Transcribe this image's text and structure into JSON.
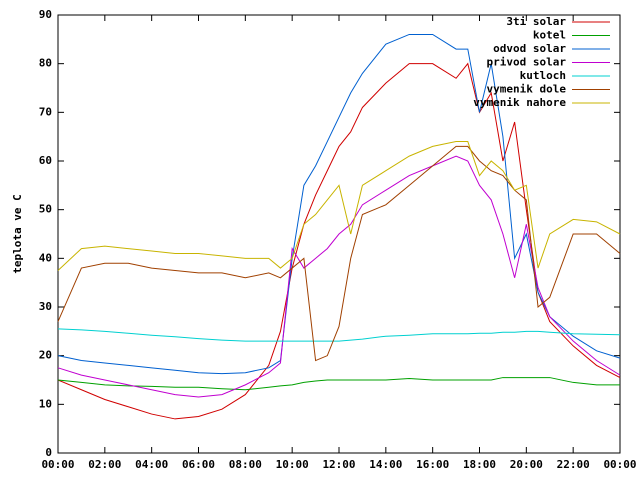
{
  "chart_data": {
    "type": "line",
    "y_label": "teplota ve C",
    "x": [
      0,
      1,
      2,
      3,
      4,
      5,
      6,
      7,
      8,
      9,
      9.5,
      10,
      10.5,
      11,
      11.5,
      12,
      12.5,
      13,
      14,
      15,
      16,
      17,
      17.5,
      18,
      18.5,
      19,
      19.5,
      20,
      20.5,
      21,
      22,
      23,
      24
    ],
    "series": [
      {
        "name": "3ti solar",
        "color": "#d00000",
        "values": [
          15,
          13,
          11,
          9.5,
          8,
          7,
          7.5,
          9,
          12,
          18,
          25,
          38,
          47,
          53,
          58,
          63,
          66,
          71,
          76,
          80,
          80,
          77,
          80,
          70,
          74,
          60,
          68,
          50,
          33,
          27,
          22,
          18,
          15.5
        ]
      },
      {
        "name": "kotel",
        "color": "#00a000",
        "values": [
          15,
          14.5,
          14,
          13.8,
          13.7,
          13.5,
          13.5,
          13.2,
          13,
          13.5,
          13.8,
          14,
          14.5,
          14.8,
          15,
          15,
          15,
          15,
          15,
          15.3,
          15,
          15,
          15,
          15,
          15,
          15.5,
          15.5,
          15.5,
          15.5,
          15.5,
          14.5,
          14,
          14
        ]
      },
      {
        "name": "odvod solar",
        "color": "#0060d0",
        "values": [
          20,
          19,
          18.5,
          18,
          17.5,
          17,
          16.5,
          16.3,
          16.5,
          17.5,
          19,
          40,
          55,
          59,
          64,
          69,
          74,
          78,
          84,
          86,
          86,
          83,
          83,
          70,
          80,
          65,
          40,
          45,
          33,
          28,
          24,
          21,
          19.5
        ]
      },
      {
        "name": "privod solar",
        "color": "#c000d0",
        "values": [
          17.5,
          16,
          15,
          14,
          13,
          12,
          11.5,
          12,
          14,
          16.5,
          18.5,
          42,
          38,
          40,
          42,
          45,
          47,
          51,
          54,
          57,
          59,
          61,
          60,
          55,
          52,
          45,
          36,
          47,
          34,
          28,
          23,
          19,
          16
        ]
      },
      {
        "name": "kutloch",
        "color": "#00d0d0",
        "values": [
          25.5,
          25.3,
          25,
          24.6,
          24.2,
          23.9,
          23.5,
          23.2,
          23,
          23,
          23,
          23,
          23,
          23,
          23,
          23,
          23.2,
          23.4,
          24,
          24.2,
          24.5,
          24.5,
          24.5,
          24.6,
          24.6,
          24.8,
          24.8,
          25,
          25,
          24.8,
          24.5,
          24.4,
          24.3
        ]
      },
      {
        "name": "vymenik dole",
        "color": "#a04000",
        "values": [
          27,
          38,
          39,
          39,
          38,
          37.5,
          37,
          37,
          36,
          37,
          36,
          38,
          40,
          19,
          20,
          26,
          40,
          49,
          51,
          55,
          59,
          63,
          63,
          60,
          58,
          57,
          54,
          52,
          30,
          32,
          45,
          45,
          41
        ]
      },
      {
        "name": "vymenik nahore",
        "color": "#c8b400",
        "values": [
          37.5,
          42,
          42.5,
          42,
          41.5,
          41,
          41,
          40.5,
          40,
          40,
          38,
          40,
          47,
          49,
          52,
          55,
          45,
          55,
          58,
          61,
          63,
          64,
          64,
          57,
          60,
          58,
          54,
          55,
          38,
          45,
          48,
          47.5,
          45
        ]
      }
    ],
    "xlim": [
      0,
      24
    ],
    "xticks": [
      {
        "value": 0,
        "label": "00:00"
      },
      {
        "value": 2,
        "label": "02:00"
      },
      {
        "value": 4,
        "label": "04:00"
      },
      {
        "value": 6,
        "label": "06:00"
      },
      {
        "value": 8,
        "label": "08:00"
      },
      {
        "value": 10,
        "label": "10:00"
      },
      {
        "value": 12,
        "label": "12:00"
      },
      {
        "value": 14,
        "label": "14:00"
      },
      {
        "value": 16,
        "label": "16:00"
      },
      {
        "value": 18,
        "label": "18:00"
      },
      {
        "value": 20,
        "label": "20:00"
      },
      {
        "value": 22,
        "label": "22:00"
      },
      {
        "value": 24,
        "label": "00:00"
      }
    ],
    "ylim": [
      0,
      90
    ],
    "yticks": [
      0,
      10,
      20,
      30,
      40,
      50,
      60,
      70,
      80,
      90
    ],
    "legend": "top-right"
  }
}
